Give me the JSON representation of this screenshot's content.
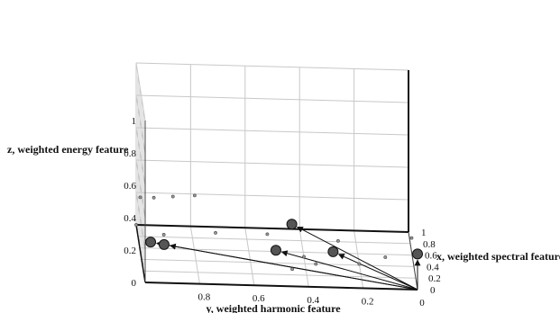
{
  "chart_data": {
    "type": "scatter3d",
    "xlabel": "x, weighted spectral feature",
    "ylabel": "y, weighted harmonic feature",
    "zlabel": "z, weighted energy feature",
    "x_ticks": [
      "0",
      "0.2",
      "0.4",
      "0.6",
      "0.8",
      "1"
    ],
    "y_ticks": [
      "0",
      "0.2",
      "0.4",
      "0.6",
      "0.8"
    ],
    "z_ticks": [
      "0",
      "0.2",
      "0.4",
      "0.6",
      "0.8",
      "1"
    ],
    "xlim": [
      0,
      1
    ],
    "ylim": [
      0,
      1
    ],
    "zlim": [
      0,
      1
    ],
    "grid": true,
    "large_points": [
      {
        "x": 0.0,
        "y": 0.98,
        "z": 0.25
      },
      {
        "x": 0.02,
        "y": 0.93,
        "z": 0.23
      },
      {
        "x": 0.35,
        "y": 0.45,
        "z": 0.26
      },
      {
        "x": 0.0,
        "y": 0.52,
        "z": 0.22
      },
      {
        "x": 0.0,
        "y": 0.31,
        "z": 0.22
      },
      {
        "x": 0.0,
        "y": 0.0,
        "z": 0.22
      }
    ],
    "small_points": [
      {
        "x": 0.05,
        "y": 0.93,
        "z": 0.28
      },
      {
        "x": 0.05,
        "y": 0.74,
        "z": 0.3
      },
      {
        "x": 0.05,
        "y": 0.55,
        "z": 0.3
      },
      {
        "x": 0.05,
        "y": 0.29,
        "z": 0.27
      },
      {
        "x": 0.05,
        "y": 0.02,
        "z": 0.3
      },
      {
        "x": 0.55,
        "y": 1.0,
        "z": 0.33
      },
      {
        "x": 0.55,
        "y": 0.95,
        "z": 0.33
      },
      {
        "x": 0.55,
        "y": 0.88,
        "z": 0.34
      },
      {
        "x": 0.55,
        "y": 0.8,
        "z": 0.35
      },
      {
        "x": 1.0,
        "y": 1.0,
        "z": 0.0
      },
      {
        "x": 0.52,
        "y": 0.4,
        "z": 0.0
      },
      {
        "x": 0.4,
        "y": 0.36,
        "z": 0.0
      },
      {
        "x": 0.3,
        "y": 0.45,
        "z": 0.0
      },
      {
        "x": 0.42,
        "y": 0.2,
        "z": 0.0
      },
      {
        "x": 0.55,
        "y": 0.1,
        "z": 0.0
      }
    ],
    "arrows": "from origin (0,0,0) to each large point",
    "colors": {
      "large_point": "#555555",
      "small_point": "#999999",
      "grid": "#c8c8c8",
      "axis": "#111111"
    }
  }
}
